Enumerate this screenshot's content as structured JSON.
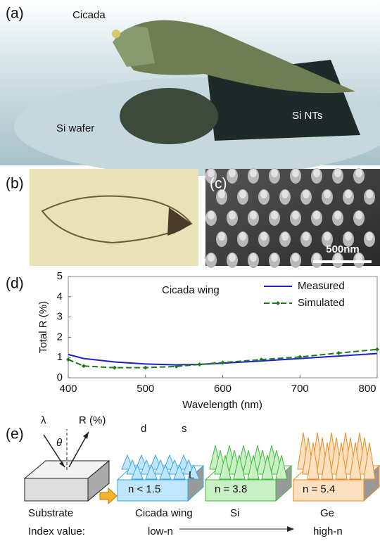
{
  "figure": {
    "panel_a": {
      "label": "(a)",
      "cicada": "Cicada",
      "wafer": "Si wafer",
      "nts": "Si NTs"
    },
    "panel_b": {
      "label": "(b)"
    },
    "panel_c": {
      "label": "(c)",
      "scale": "500nm"
    },
    "panel_d": {
      "label": "(d)"
    },
    "panel_e": {
      "label": "(e)",
      "lambda": "λ",
      "theta": "θ",
      "reflect": "R (%)",
      "d": "d",
      "s": "s",
      "L": "L",
      "n1": "n < 1.5",
      "n2": "n = 3.8",
      "n3": "n = 5.4",
      "substrate": "Substrate",
      "index": "Index value:",
      "wing": "Cicada wing",
      "si": "Si",
      "ge": "Ge",
      "low": "low-n",
      "high": "high-n"
    }
  },
  "chart_data": {
    "type": "line",
    "annotation": "Cicada wing",
    "x_label": "Wavelength (nm)",
    "y_label": "Total R (%)",
    "x": [
      400,
      420,
      460,
      500,
      540,
      570,
      600,
      650,
      700,
      750,
      800
    ],
    "series": [
      {
        "name": "Measured",
        "color": "#1f1fd0",
        "values": [
          1.15,
          0.95,
          0.78,
          0.68,
          0.64,
          0.66,
          0.72,
          0.83,
          0.95,
          1.07,
          1.2
        ]
      },
      {
        "name": "Simulated",
        "color": "#1a7a1a",
        "dashed": true,
        "markers": true,
        "values": [
          0.9,
          0.58,
          0.5,
          0.5,
          0.56,
          0.66,
          0.75,
          0.9,
          1.03,
          1.22,
          1.4
        ]
      }
    ],
    "xlim": [
      400,
      800
    ],
    "ylim": [
      0,
      5
    ],
    "xticks": [
      400,
      500,
      600,
      700,
      800
    ],
    "yticks": [
      0,
      1,
      2,
      3,
      4,
      5
    ],
    "legend": "top-right"
  }
}
